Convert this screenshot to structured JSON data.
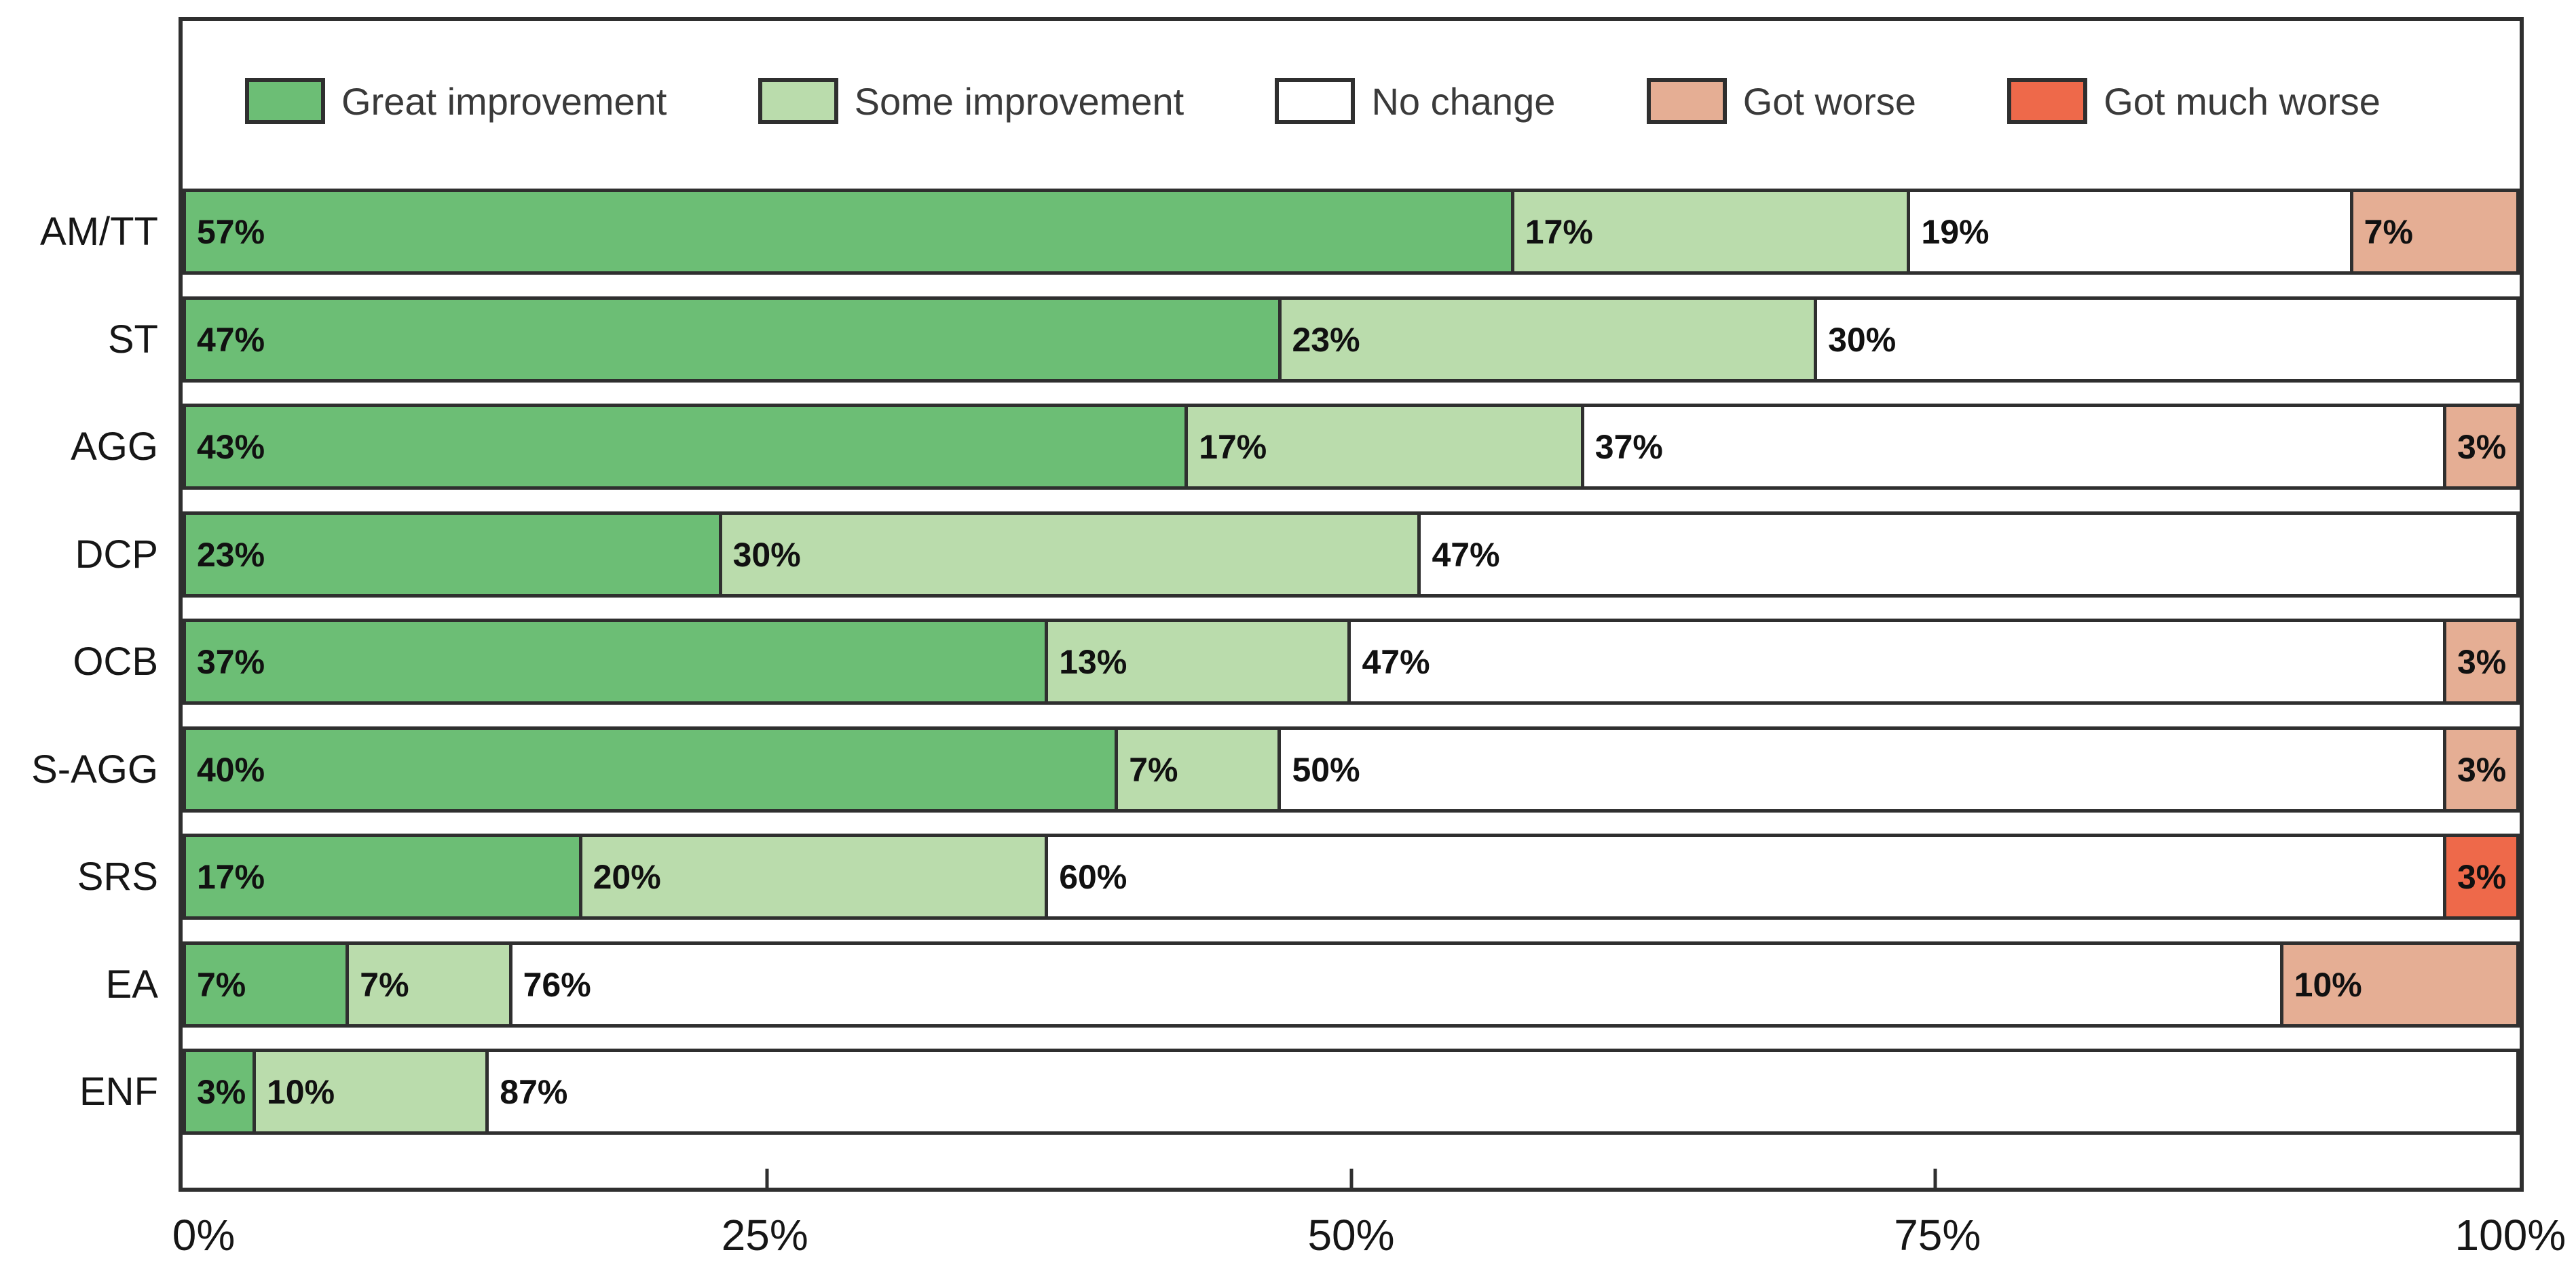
{
  "chart_data": {
    "type": "bar",
    "orientation": "horizontal-stacked",
    "title": "",
    "xlabel": "",
    "ylabel": "",
    "xlim": [
      0,
      100
    ],
    "grid": false,
    "legend_position": "top-inside",
    "value_suffix": "%",
    "categories": [
      "AM/TT",
      "ST",
      "AGG",
      "DCP",
      "OCB",
      "S-AGG",
      "SRS",
      "EA",
      "ENF"
    ],
    "series": [
      {
        "name": "Great improvement",
        "color": "#6cbe75",
        "values": [
          57,
          47,
          43,
          23,
          37,
          40,
          17,
          7,
          3
        ]
      },
      {
        "name": "Some improvement",
        "color": "#badcac",
        "values": [
          17,
          23,
          17,
          30,
          13,
          7,
          20,
          7,
          10
        ]
      },
      {
        "name": "No change",
        "color": "#ffffff",
        "values": [
          19,
          30,
          37,
          47,
          47,
          50,
          60,
          76,
          87
        ]
      },
      {
        "name": "Got worse",
        "color": "#e5ae94",
        "values": [
          7,
          0,
          3,
          0,
          3,
          3,
          0,
          10,
          0
        ]
      },
      {
        "name": "Got much worse",
        "color": "#ee694a",
        "values": [
          0,
          0,
          0,
          0,
          0,
          0,
          3,
          0,
          0
        ]
      }
    ],
    "x_ticks": [
      {
        "label": "0%",
        "value": 0
      },
      {
        "label": "25%",
        "value": 25
      },
      {
        "label": "50%",
        "value": 50
      },
      {
        "label": "75%",
        "value": 75
      },
      {
        "label": "100%",
        "value": 100
      }
    ]
  },
  "colors": {
    "frame_border": "#2f2f2f",
    "segment_border": "#2f2f2f",
    "text": "#161616",
    "background": "#ffffff"
  }
}
